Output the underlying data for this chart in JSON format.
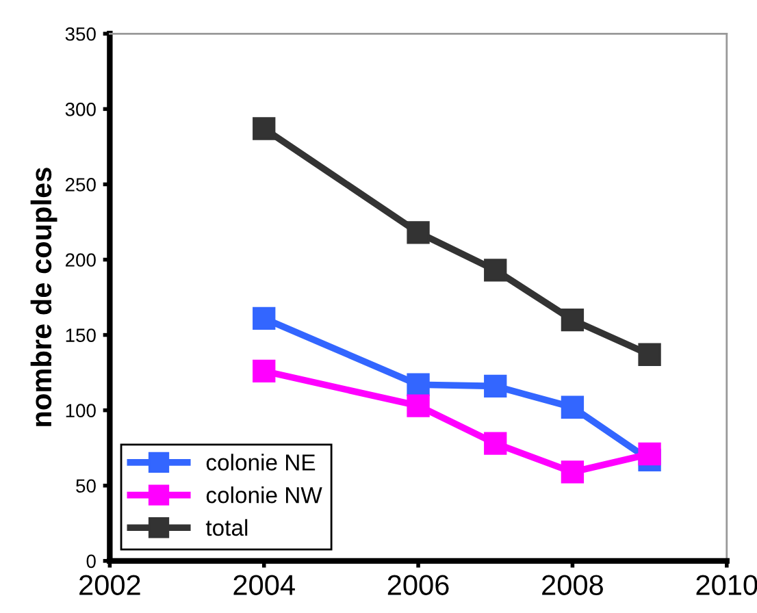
{
  "chart_data": {
    "type": "line",
    "ylabel": "nombre de couples",
    "x": [
      2004,
      2006,
      2007,
      2008,
      2009
    ],
    "series": [
      {
        "name": "colonie NE",
        "color": "#3366ff",
        "values": [
          161,
          117,
          116,
          102,
          67
        ]
      },
      {
        "name": "colonie NW",
        "color": "#ff00ff",
        "values": [
          126,
          103,
          78,
          59,
          71
        ]
      },
      {
        "name": "total",
        "color": "#333333",
        "values": [
          287,
          218,
          193,
          160,
          137
        ]
      }
    ],
    "xlim": [
      2002,
      2010
    ],
    "xticks": [
      2002,
      2004,
      2006,
      2008,
      2010
    ],
    "ylim": [
      0,
      350
    ],
    "yticks": [
      0,
      50,
      100,
      150,
      200,
      250,
      300,
      350
    ],
    "grid": false,
    "legend": "bottom left",
    "marker": "square",
    "line_style": "solid"
  }
}
